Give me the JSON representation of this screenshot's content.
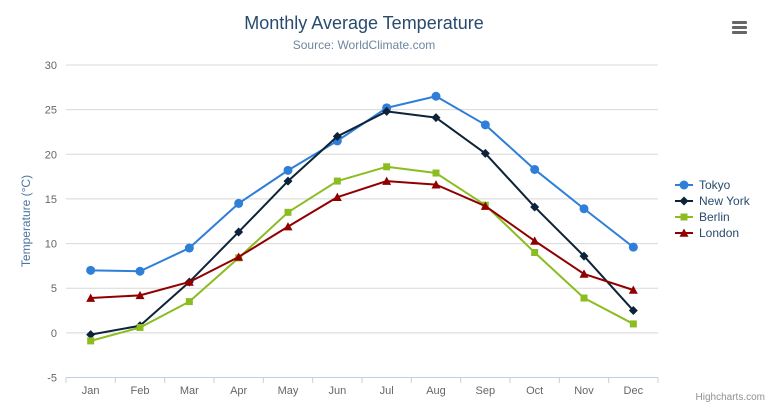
{
  "header": {
    "title": "Monthly Average Temperature",
    "subtitle": "Source: WorldClimate.com"
  },
  "menu_icon": "hamburger-icon",
  "credits": "Highcharts.com",
  "chart_data": {
    "type": "line",
    "title": "Monthly Average Temperature",
    "subtitle": "Source: WorldClimate.com",
    "xlabel": "",
    "ylabel": "Temperature (°C)",
    "categories": [
      "Jan",
      "Feb",
      "Mar",
      "Apr",
      "May",
      "Jun",
      "Jul",
      "Aug",
      "Sep",
      "Oct",
      "Nov",
      "Dec"
    ],
    "y_ticks": [
      -5,
      0,
      5,
      10,
      15,
      20,
      25,
      30
    ],
    "ylim": [
      -5,
      30
    ],
    "grid": true,
    "legend_position": "right-middle",
    "series": [
      {
        "name": "Tokyo",
        "color": "#2f7ed8",
        "marker": "circle",
        "values": [
          7.0,
          6.9,
          9.5,
          14.5,
          18.2,
          21.5,
          25.2,
          26.5,
          23.3,
          18.3,
          13.9,
          9.6
        ]
      },
      {
        "name": "New York",
        "color": "#0d233a",
        "marker": "diamond",
        "values": [
          -0.2,
          0.8,
          5.7,
          11.3,
          17.0,
          22.0,
          24.8,
          24.1,
          20.1,
          14.1,
          8.6,
          2.5
        ]
      },
      {
        "name": "Berlin",
        "color": "#8bbc21",
        "marker": "square",
        "values": [
          -0.9,
          0.6,
          3.5,
          8.4,
          13.5,
          17.0,
          18.6,
          17.9,
          14.3,
          9.0,
          3.9,
          1.0
        ]
      },
      {
        "name": "London",
        "color": "#910000",
        "marker": "triangle",
        "values": [
          3.9,
          4.2,
          5.7,
          8.5,
          11.9,
          15.2,
          17.0,
          16.6,
          14.2,
          10.3,
          6.6,
          4.8
        ]
      }
    ]
  },
  "colors": {
    "title": "#274b6d",
    "subtitle": "#6d869f",
    "yaxis_title": "#4d759e",
    "axis_labels": "#666666",
    "axis_line": "#c0d0e0",
    "gridline": "#d8d8d8",
    "legend_text": "#274b6d",
    "credits_text": "#909090",
    "background": "#ffffff"
  }
}
